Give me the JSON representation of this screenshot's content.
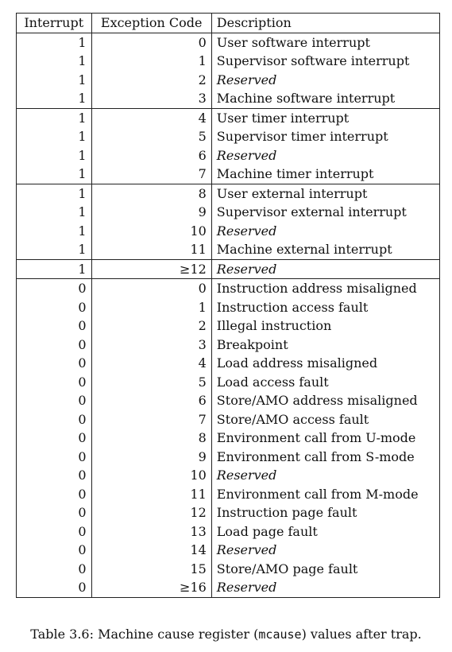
{
  "table": {
    "headers": [
      "Interrupt",
      "Exception Code",
      "Description"
    ],
    "groups": [
      {
        "rows": [
          {
            "interrupt": "1",
            "code": "0",
            "description": "User software interrupt",
            "reserved": false
          },
          {
            "interrupt": "1",
            "code": "1",
            "description": "Supervisor software interrupt",
            "reserved": false
          },
          {
            "interrupt": "1",
            "code": "2",
            "description": "Reserved",
            "reserved": true
          },
          {
            "interrupt": "1",
            "code": "3",
            "description": "Machine software interrupt",
            "reserved": false
          }
        ]
      },
      {
        "rows": [
          {
            "interrupt": "1",
            "code": "4",
            "description": "User timer interrupt",
            "reserved": false
          },
          {
            "interrupt": "1",
            "code": "5",
            "description": "Supervisor timer interrupt",
            "reserved": false
          },
          {
            "interrupt": "1",
            "code": "6",
            "description": "Reserved",
            "reserved": true
          },
          {
            "interrupt": "1",
            "code": "7",
            "description": "Machine timer interrupt",
            "reserved": false
          }
        ]
      },
      {
        "rows": [
          {
            "interrupt": "1",
            "code": "8",
            "description": "User external interrupt",
            "reserved": false
          },
          {
            "interrupt": "1",
            "code": "9",
            "description": "Supervisor external interrupt",
            "reserved": false
          },
          {
            "interrupt": "1",
            "code": "10",
            "description": "Reserved",
            "reserved": true
          },
          {
            "interrupt": "1",
            "code": "11",
            "description": "Machine external interrupt",
            "reserved": false
          }
        ]
      },
      {
        "rows": [
          {
            "interrupt": "1",
            "code": "≥12",
            "description": "Reserved",
            "reserved": true
          }
        ]
      },
      {
        "rows": [
          {
            "interrupt": "0",
            "code": "0",
            "description": "Instruction address misaligned",
            "reserved": false
          },
          {
            "interrupt": "0",
            "code": "1",
            "description": "Instruction access fault",
            "reserved": false
          },
          {
            "interrupt": "0",
            "code": "2",
            "description": "Illegal instruction",
            "reserved": false
          },
          {
            "interrupt": "0",
            "code": "3",
            "description": "Breakpoint",
            "reserved": false
          },
          {
            "interrupt": "0",
            "code": "4",
            "description": "Load address misaligned",
            "reserved": false
          },
          {
            "interrupt": "0",
            "code": "5",
            "description": "Load access fault",
            "reserved": false
          },
          {
            "interrupt": "0",
            "code": "6",
            "description": "Store/AMO address misaligned",
            "reserved": false
          },
          {
            "interrupt": "0",
            "code": "7",
            "description": "Store/AMO access fault",
            "reserved": false
          },
          {
            "interrupt": "0",
            "code": "8",
            "description": "Environment call from U-mode",
            "reserved": false
          },
          {
            "interrupt": "0",
            "code": "9",
            "description": "Environment call from S-mode",
            "reserved": false
          },
          {
            "interrupt": "0",
            "code": "10",
            "description": "Reserved",
            "reserved": true
          },
          {
            "interrupt": "0",
            "code": "11",
            "description": "Environment call from M-mode",
            "reserved": false
          },
          {
            "interrupt": "0",
            "code": "12",
            "description": "Instruction page fault",
            "reserved": false
          },
          {
            "interrupt": "0",
            "code": "13",
            "description": "Load page fault",
            "reserved": false
          },
          {
            "interrupt": "0",
            "code": "14",
            "description": "Reserved",
            "reserved": true
          },
          {
            "interrupt": "0",
            "code": "15",
            "description": "Store/AMO page fault",
            "reserved": false
          },
          {
            "interrupt": "0",
            "code": "≥16",
            "description": "Reserved",
            "reserved": true
          }
        ]
      }
    ]
  },
  "caption": {
    "prefix": "Table 3.6: Machine cause register (",
    "code": "mcause",
    "suffix": ") values after trap."
  }
}
